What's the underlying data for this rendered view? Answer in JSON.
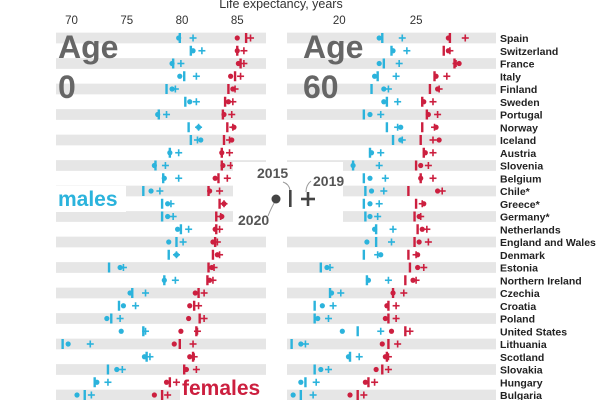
{
  "chart_data": {
    "type": "scatter",
    "title": "Life expectancy, years",
    "colors": {
      "males": "#2bb3dc",
      "females": "#cc1f3f",
      "band": "#e6e6e6",
      "ink": "#444444"
    },
    "legend": {
      "y2015": "2015",
      "y2019": "2019",
      "y2020": "2020"
    },
    "series_labels": {
      "males": "males",
      "females": "females"
    },
    "marker_meaning": {
      "bar": "2015",
      "cross": "2019",
      "dot": "2020"
    },
    "countries": [
      "Spain",
      "Switzerland",
      "France",
      "Italy",
      "Finland",
      "Sweden",
      "Portugal",
      "Norway",
      "Iceland",
      "Austria",
      "Slovenia",
      "Belgium",
      "Chile*",
      "Greece*",
      "Germany*",
      "Netherlands",
      "England and Wales",
      "Denmark",
      "Estonia",
      "Northern Ireland",
      "Czechia",
      "Croatia",
      "Poland",
      "United States",
      "Lithuania",
      "Scotland",
      "Slovakia",
      "Hungary",
      "Bulgaria"
    ],
    "panels": [
      {
        "label": [
          "Age",
          "0"
        ],
        "xlim": [
          68.6,
          87.6
        ],
        "ticks": [
          70,
          75,
          80,
          85
        ],
        "males": {
          "y2015": [
            79.8,
            80.8,
            79.2,
            80.2,
            78.6,
            80.3,
            77.9,
            80.6,
            80.8,
            78.9,
            77.6,
            78.3,
            76.5,
            78.2,
            78.2,
            79.9,
            79.5,
            78.8,
            73.4,
            78.4,
            75.5,
            74.3,
            73.6,
            76.5,
            69.2,
            76.8,
            73.3,
            72.1,
            71.2
          ],
          "y2019": [
            81.0,
            81.8,
            79.9,
            81.3,
            79.4,
            81.3,
            78.6,
            81.5,
            81.4,
            79.7,
            78.5,
            79.7,
            78.0,
            79.0,
            79.2,
            80.6,
            80.1,
            79.5,
            74.7,
            79.4,
            76.7,
            75.8,
            74.4,
            76.7,
            71.7,
            77.1,
            74.6,
            73.3,
            71.8
          ],
          "y2020": [
            79.7,
            81.0,
            79.1,
            79.8,
            79.1,
            80.7,
            77.8,
            81.5,
            81.7,
            78.9,
            77.5,
            78.4,
            77.2,
            78.7,
            78.7,
            79.6,
            78.8,
            79.5,
            74.4,
            78.4,
            75.3,
            74.7,
            73.2,
            74.5,
            69.7,
            76.6,
            74.1,
            72.3,
            70.5
          ]
        },
        "females": {
          "y2015": [
            85.8,
            85.0,
            85.3,
            84.8,
            84.2,
            83.9,
            83.7,
            84.1,
            83.8,
            83.6,
            83.6,
            83.3,
            82.4,
            83.4,
            83.1,
            83.1,
            83.0,
            82.8,
            82.4,
            82.3,
            81.5,
            81.1,
            81.6,
            81.3,
            79.8,
            81.0,
            80.2,
            78.9,
            78.2
          ],
          "y2019": [
            86.2,
            85.6,
            85.6,
            85.3,
            84.8,
            84.6,
            84.5,
            84.6,
            84.3,
            84.3,
            84.4,
            84.1,
            83.4,
            83.8,
            83.5,
            83.4,
            83.2,
            83.4,
            82.9,
            82.8,
            82.0,
            81.5,
            82.0,
            81.4,
            81.0,
            81.1,
            81.3,
            79.5,
            78.7
          ],
          "y2020": [
            85.0,
            85.0,
            85.1,
            84.4,
            84.6,
            84.2,
            83.8,
            84.7,
            84.5,
            83.6,
            83.7,
            83.0,
            82.5,
            83.8,
            83.6,
            83.0,
            82.8,
            83.2,
            82.7,
            82.5,
            81.2,
            80.7,
            80.6,
            79.9,
            79.3,
            80.7,
            80.4,
            78.6,
            77.5
          ]
        }
      },
      {
        "label": [
          "Age",
          "60"
        ],
        "xlim": [
          16.6,
          30.2
        ],
        "ticks": [
          20,
          25
        ],
        "males": {
          "y2015": [
            22.8,
            23.4,
            22.9,
            22.5,
            22.1,
            23.1,
            21.6,
            23.1,
            23.5,
            22.0,
            20.9,
            21.6,
            21.7,
            21.6,
            21.7,
            22.4,
            22.4,
            21.6,
            18.8,
            21.8,
            19.4,
            18.4,
            18.4,
            21.2,
            16.9,
            20.7,
            18.4,
            17.8,
            17.5
          ],
          "y2019": [
            24.1,
            24.4,
            23.9,
            23.7,
            23.2,
            23.8,
            22.7,
            23.8,
            24.1,
            22.7,
            22.6,
            23.0,
            22.9,
            22.6,
            22.5,
            23.5,
            23.4,
            22.5,
            19.4,
            23.2,
            20.1,
            19.6,
            19.3,
            22.7,
            17.8,
            21.3,
            19.3,
            18.5,
            18.3
          ],
          "y2020": [
            22.6,
            23.5,
            22.6,
            22.3,
            22.9,
            22.9,
            22.0,
            24.0,
            24.0,
            22.1,
            20.9,
            22.0,
            22.1,
            22.0,
            22.0,
            22.3,
            21.8,
            22.7,
            19.2,
            21.9,
            19.5,
            18.9,
            18.6,
            20.2,
            17.5,
            20.6,
            18.8,
            17.5,
            17.0
          ]
        },
        "females": {
          "y2015": [
            27.2,
            26.8,
            27.5,
            26.2,
            25.9,
            25.4,
            25.7,
            25.4,
            25.3,
            25.5,
            25.0,
            25.3,
            24.5,
            25.0,
            24.9,
            25.1,
            24.9,
            24.5,
            24.6,
            24.3,
            23.5,
            23.2,
            23.2,
            24.3,
            23.2,
            23.1,
            22.8,
            21.9,
            21.2
          ],
          "y2019": [
            28.2,
            27.2,
            27.6,
            27.0,
            26.5,
            26.1,
            26.4,
            26.2,
            26.1,
            26.1,
            25.8,
            26.1,
            26.7,
            25.4,
            25.3,
            25.7,
            25.8,
            25.0,
            25.5,
            25.0,
            24.2,
            23.7,
            23.7,
            24.6,
            23.8,
            23.2,
            23.2,
            22.3,
            21.6
          ],
          "y2020": [
            27.1,
            27.1,
            27.8,
            26.3,
            26.4,
            25.5,
            25.8,
            26.3,
            26.5,
            25.6,
            25.3,
            25.3,
            26.4,
            25.5,
            25.2,
            25.4,
            25.2,
            25.1,
            25.1,
            24.8,
            23.5,
            23.1,
            23.0,
            23.4,
            22.8,
            23.0,
            22.4,
            21.7,
            20.7
          ]
        }
      }
    ]
  }
}
